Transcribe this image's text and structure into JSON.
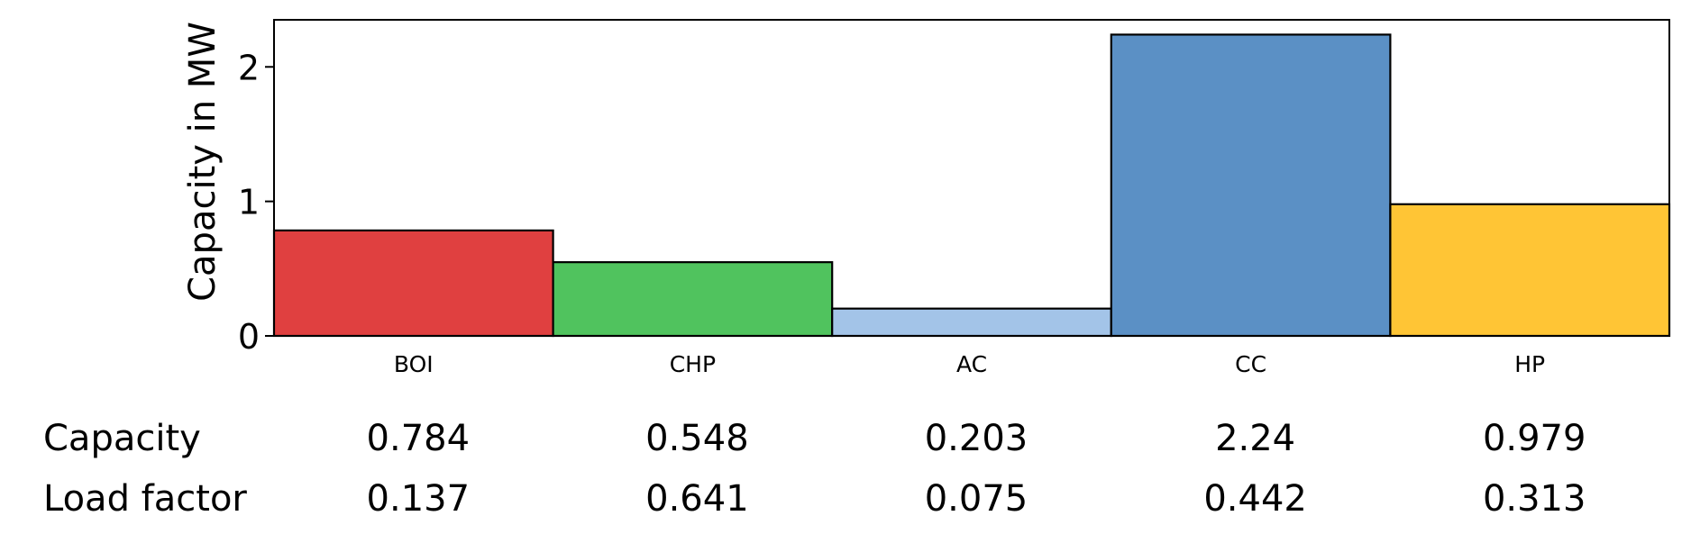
{
  "chart_data": {
    "type": "bar",
    "ylabel": "Capacity in MW",
    "ylim": [
      0,
      2.35
    ],
    "yticks": [
      "0",
      "1",
      "2"
    ],
    "grid": false,
    "categories": [
      "BOI",
      "CHP",
      "AC",
      "CC",
      "HP"
    ],
    "values": [
      0.784,
      0.548,
      0.203,
      2.24,
      0.979
    ],
    "colors": [
      "#e04040",
      "#50c35e",
      "#a3c4e8",
      "#5b90c5",
      "#ffc535"
    ],
    "table": {
      "rows": [
        {
          "label": "Capacity",
          "values": [
            "0.784",
            "0.548",
            "0.203",
            "2.24",
            "0.979"
          ]
        },
        {
          "label": "Load factor",
          "values": [
            "0.137",
            "0.641",
            "0.075",
            "0.442",
            "0.313"
          ]
        }
      ]
    }
  }
}
